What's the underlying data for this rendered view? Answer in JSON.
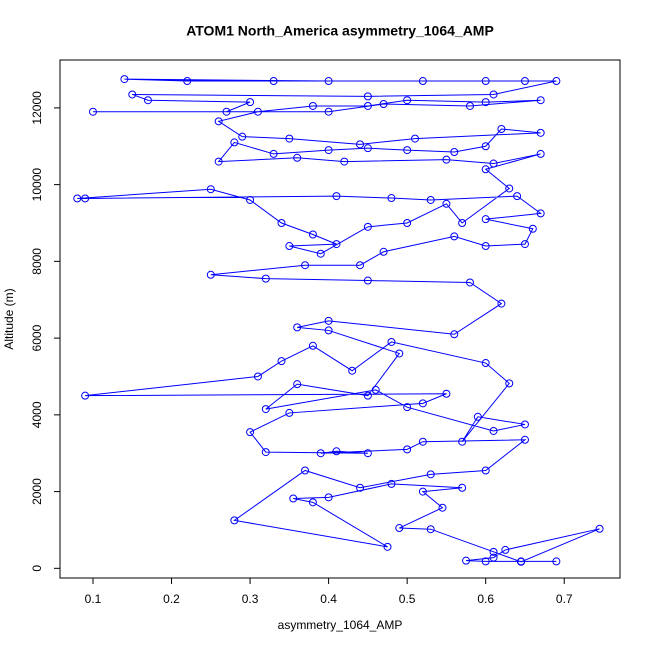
{
  "chart_data": {
    "type": "line",
    "markers": true,
    "title": "ATOM1 North_America asymmetry_1064_AMP",
    "xlabel": "asymmetry_1064_AMP",
    "ylabel": "Altitude (m)",
    "xlim": [
      0.058,
      0.771
    ],
    "ylim": [
      -252,
      13248
    ],
    "xticks": [
      0.1,
      0.2,
      0.3,
      0.4,
      0.5,
      0.6,
      0.7
    ],
    "yticks": [
      0,
      2000,
      4000,
      6000,
      8000,
      10000,
      12000
    ],
    "x": [
      0.645,
      0.69,
      0.6,
      0.575,
      0.61,
      0.625,
      0.745,
      0.645,
      0.61,
      0.53,
      0.49,
      0.545,
      0.52,
      0.57,
      0.48,
      0.4,
      0.355,
      0.38,
      0.475,
      0.28,
      0.37,
      0.44,
      0.53,
      0.6,
      0.65,
      0.52,
      0.5,
      0.39,
      0.41,
      0.45,
      0.32,
      0.3,
      0.35,
      0.52,
      0.55,
      0.09,
      0.31,
      0.34,
      0.38,
      0.43,
      0.48,
      0.6,
      0.63,
      0.57,
      0.59,
      0.65,
      0.61,
      0.5,
      0.46,
      0.32,
      0.36,
      0.45,
      0.49,
      0.4,
      0.36,
      0.4,
      0.56,
      0.62,
      0.58,
      0.45,
      0.32,
      0.25,
      0.37,
      0.44,
      0.47,
      0.56,
      0.6,
      0.65,
      0.66,
      0.6,
      0.67,
      0.64,
      0.53,
      0.48,
      0.41,
      0.09,
      0.08,
      0.25,
      0.3,
      0.34,
      0.38,
      0.41,
      0.35,
      0.39,
      0.45,
      0.5,
      0.55,
      0.57,
      0.63,
      0.6,
      0.67,
      0.61,
      0.55,
      0.42,
      0.36,
      0.26,
      0.28,
      0.33,
      0.4,
      0.45,
      0.5,
      0.56,
      0.6,
      0.62,
      0.67,
      0.51,
      0.44,
      0.35,
      0.29,
      0.26,
      0.31,
      0.38,
      0.45,
      0.5,
      0.6,
      0.67,
      0.58,
      0.47,
      0.4,
      0.1,
      0.27,
      0.3,
      0.17,
      0.15,
      0.45,
      0.61,
      0.69,
      0.6,
      0.4,
      0.14,
      0.22,
      0.33,
      0.52,
      0.65
    ],
    "series": [
      {
        "color": "#0000ff",
        "values": [
          180,
          180,
          180,
          200,
          280,
          480,
          1030,
          170,
          430,
          1020,
          1050,
          1580,
          2000,
          2100,
          2200,
          1850,
          1820,
          1720,
          560,
          1250,
          2550,
          2100,
          2450,
          2550,
          3350,
          3300,
          3100,
          3000,
          3050,
          3000,
          3030,
          3550,
          4050,
          4300,
          4550,
          4500,
          5000,
          5400,
          5800,
          5150,
          5900,
          5350,
          4820,
          3300,
          3950,
          3750,
          3580,
          4200,
          4650,
          4150,
          4800,
          4500,
          5600,
          6200,
          6280,
          6450,
          6100,
          6900,
          7450,
          7500,
          7550,
          7650,
          7900,
          7900,
          8250,
          8650,
          8400,
          8450,
          8850,
          9100,
          9250,
          9700,
          9600,
          9650,
          9700,
          9640,
          9640,
          9880,
          9600,
          9000,
          8700,
          8450,
          8400,
          8200,
          8900,
          9000,
          9500,
          9000,
          9900,
          10400,
          10800,
          10550,
          10650,
          10600,
          10700,
          10600,
          11100,
          10800,
          10900,
          10950,
          10900,
          10850,
          11000,
          11450,
          11350,
          11200,
          11050,
          11200,
          11250,
          11650,
          11900,
          12050,
          12050,
          12200,
          12150,
          12200,
          12050,
          12100,
          11900,
          11900,
          11900,
          12150,
          12200,
          12350,
          12300,
          12350,
          12700,
          12700,
          12700,
          12750,
          12700,
          12700,
          12700,
          12700
        ]
      }
    ]
  }
}
